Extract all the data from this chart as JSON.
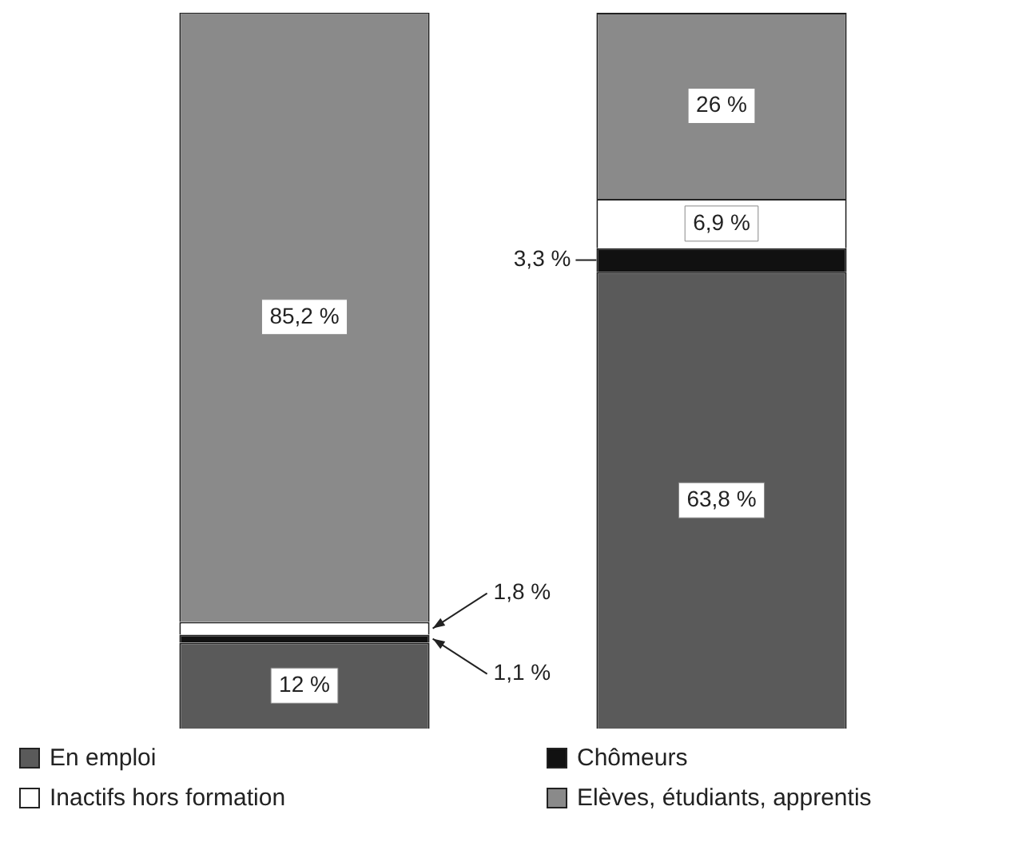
{
  "chart_data": {
    "type": "bar",
    "stacked": true,
    "categories": [
      null,
      null
    ],
    "ylim": [
      0,
      100
    ],
    "tick_labels": false,
    "legend": "bottom",
    "series": [
      {
        "name": "En emploi",
        "color": "#5a5a5a",
        "values": [
          12,
          63.8
        ],
        "value_labels": [
          "12 %",
          "63,8 %"
        ]
      },
      {
        "name": "Chômeurs",
        "color": "#111111",
        "values": [
          1.1,
          3.3
        ],
        "value_labels": [
          "1,1 %",
          "3,3 %"
        ]
      },
      {
        "name": "Inactifs hors formation",
        "color": "#ffffff",
        "values": [
          1.8,
          6.9
        ],
        "value_labels": [
          "1,8 %",
          "6,9 %"
        ]
      },
      {
        "name": "Elèves, étudiants, apprentis",
        "color": "#8a8a8a",
        "values": [
          85.2,
          26
        ],
        "value_labels": [
          "85,2 %",
          "26 %"
        ]
      }
    ]
  }
}
